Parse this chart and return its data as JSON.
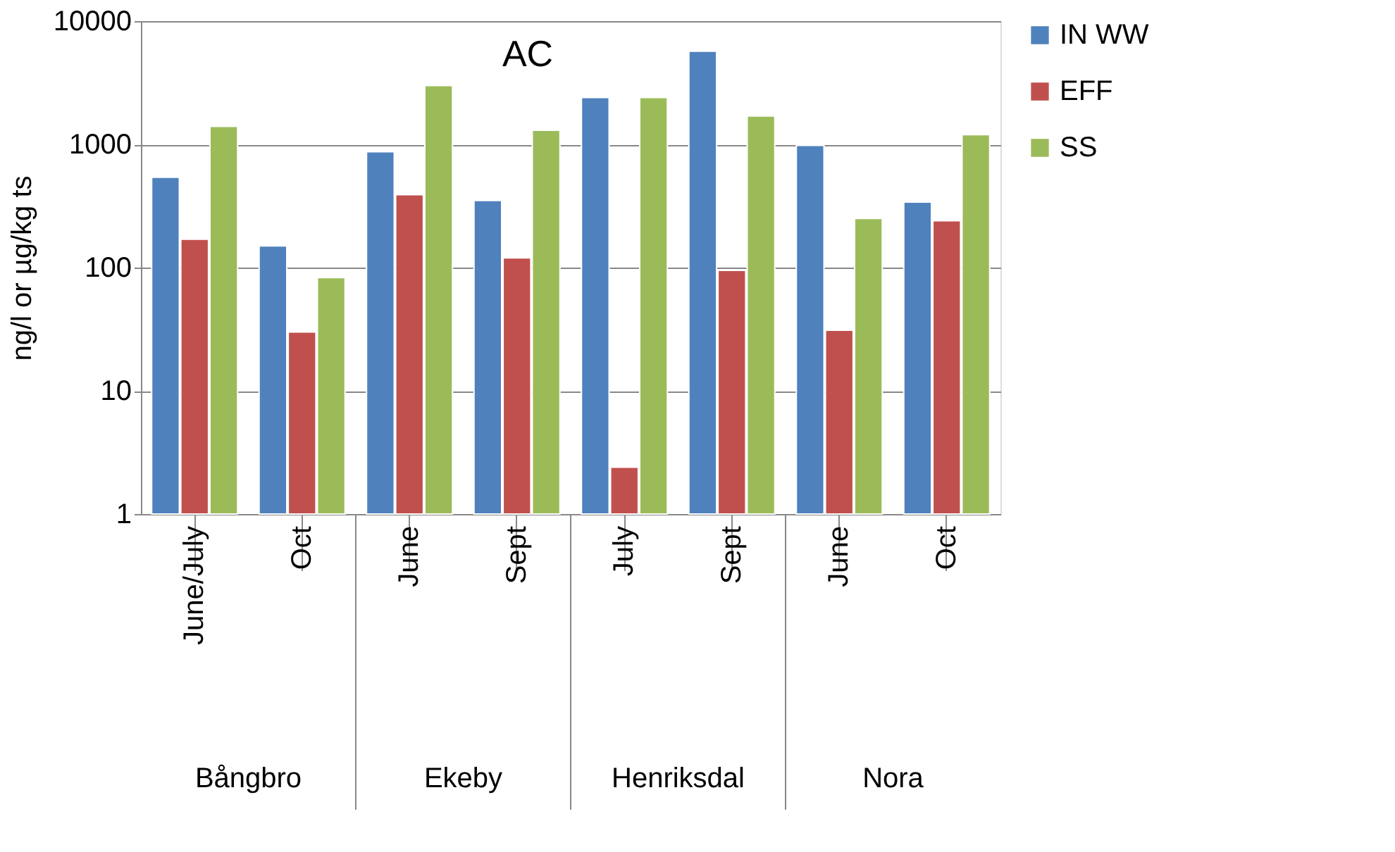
{
  "chart_data": {
    "type": "bar",
    "title": "AC",
    "ylabel": "ng/l or µg/kg ts",
    "categories": [
      "June/July",
      "Oct",
      "June",
      "Sept",
      "July",
      "Sept",
      "June",
      "Oct"
    ],
    "annotations": [
      "Bångbro",
      "Ekeby",
      "Henriksdal",
      "Nora"
    ],
    "series": [
      {
        "name": "IN WW",
        "color": "#4f81bd",
        "values": [
          540,
          150,
          870,
          350,
          2400,
          5700,
          980,
          340
        ]
      },
      {
        "name": "EFF",
        "color": "#c0504d",
        "values": [
          170,
          30,
          390,
          120,
          2.4,
          95,
          31,
          240
        ]
      },
      {
        "name": "SS",
        "color": "#9bbb59",
        "values": [
          1400,
          83,
          3000,
          1300,
          2400,
          1700,
          250,
          1200
        ]
      }
    ],
    "log": true,
    "ylim": [
      1,
      10000
    ],
    "yticks": [
      1,
      10,
      100,
      1000,
      10000
    ],
    "grid": "y",
    "legend": "right"
  }
}
